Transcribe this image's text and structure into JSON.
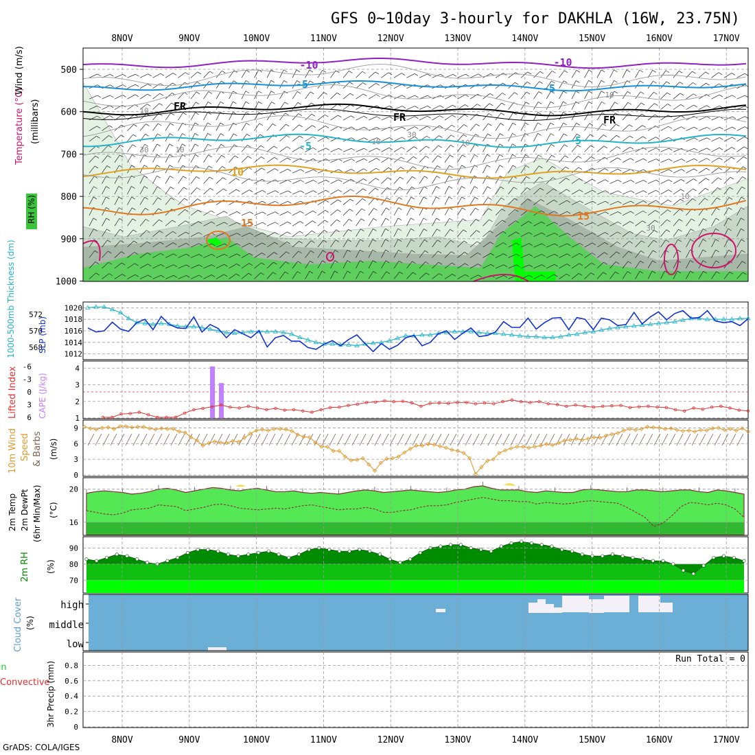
{
  "title": "GFS 0~10day 3-hourly for DAKHLA (16W, 23.75N)",
  "credit": "GrADS: COLA/IGES",
  "dates": [
    "8NOV",
    "9NOV",
    "10NOV",
    "11NOV",
    "12NOV",
    "13NOV",
    "14NOV",
    "15NOV",
    "16NOV",
    "17NOV"
  ],
  "colors": {
    "rh_light": "#e0f0e0",
    "rh_mid": "#c8d8c8",
    "rh_dark": "#a8b4a8",
    "rh_green": "#5ccf5c",
    "rh_bright": "#00ff00",
    "t_m10": "#9020c0",
    "t_m5": "#1890d8",
    "t_fr": "#000000",
    "t_5": "#20b4c8",
    "t_10": "#e0a020",
    "t_15": "#e07820",
    "t_20": "#d0106a",
    "slp": "#1030d0",
    "thick": "#20b4c8",
    "li": "#e03030",
    "cape": "#c080ff",
    "wind_speed": "#e09a30",
    "barbs": "#806050",
    "temp_fill": "#55e855",
    "dew_fill": "#30b830",
    "rh2m_dark": "#008c00",
    "rh2m_mid": "#10c010",
    "rh2m_bright": "#00ff00",
    "cloud_bg": "#6baed6",
    "cloud": "#f4f0f8"
  },
  "panels": {
    "upper": {
      "label_wind": "Wind (m/s)",
      "label_temp": "Temperature (°C)",
      "label_rh": "RH (%)",
      "label_ylabel": "(millibars)",
      "yticks": [
        500,
        600,
        700,
        800,
        900,
        1000
      ],
      "contour_labels": [
        "-10",
        "-10",
        "-5",
        "-5",
        "FR",
        "FR",
        "FR",
        "-5",
        "-5",
        "10",
        "15",
        "15"
      ],
      "rh_labels": [
        "30",
        "10",
        "10",
        "30",
        "10",
        "10",
        "30",
        "10",
        "10"
      ]
    },
    "slp": {
      "label_thick": "1000-500mb Thickness (dm)",
      "label_slp": "SLP (mb)",
      "left_ticks": [
        568,
        570,
        572
      ],
      "right_ticks": [
        1012,
        1014,
        1016,
        1018,
        1020
      ]
    },
    "li": {
      "label_li": "Lifted Index",
      "label_cape": "CAPE (J/kg)",
      "left_ticks": [
        "-6",
        "-3",
        "0",
        "3",
        "6"
      ],
      "right_ticks": [
        "1",
        "2",
        "3",
        "4"
      ]
    },
    "wind": {
      "label_wind": "10m Wind",
      "label_speed": "Speed",
      "label_barbs": "& Barbs",
      "label_units": "(m/s)",
      "ticks": [
        0,
        3,
        6,
        9
      ]
    },
    "temp": {
      "label_a": "2m Temp",
      "label_b": "2m DewPt",
      "label_c": "(6hr Min/Max)",
      "label_units": "(°C)",
      "ticks": [
        16,
        20
      ]
    },
    "rh2m": {
      "label": "2m RH",
      "label_units": "(%)",
      "ticks": [
        70,
        80,
        90
      ]
    },
    "cloud": {
      "label": "Cloud Cover",
      "label_units": "(%)",
      "levels": [
        "high",
        "middle",
        "low"
      ]
    },
    "precip": {
      "label_a": "Total / Rain",
      "label_b": "Convective",
      "label_c": "3hr Precip (mm)",
      "ticks": [
        "0",
        "0.2",
        "0.4",
        "0.6",
        "0.8"
      ],
      "run_total": "Run Total = 0"
    }
  },
  "chart_data": [
    {
      "type": "line",
      "title": "SLP (mb)",
      "x_start": "7NOV 12Z",
      "x_step_hours": 3,
      "values": [
        1016.5,
        1015.8,
        1016.0,
        1017.5,
        1016.3,
        1015.9,
        1017.4,
        1018.0,
        1016.2,
        1018.5,
        1017.1,
        1016.5,
        1016.4,
        1018.4,
        1015.8,
        1017.1,
        1016.4,
        1014.8,
        1016.2,
        1015.5,
        1014.8,
        1016.0,
        1013.2,
        1014.8,
        1015.2,
        1014.2,
        1014.2,
        1013.1,
        1012.8,
        1013.7,
        1014.3,
        1013.4,
        1014.5,
        1015.3,
        1013.8,
        1012.4,
        1013.8,
        1012.8,
        1013.5,
        1014.8,
        1015.2,
        1013.4,
        1014.0,
        1015.5,
        1016.0,
        1014.5,
        1015.6,
        1016.5,
        1015.0,
        1015.2,
        1015.8,
        1017.6,
        1016.6,
        1016.6,
        1018.2,
        1016.3,
        1017.4,
        1018.2,
        1018.3,
        1016.2,
        1018.3,
        1018.0,
        1016.2,
        1018.2,
        1017.9,
        1016.9,
        1017.1,
        1019.2,
        1017.2,
        1018.4,
        1019.3,
        1017.9,
        1019.0,
        1019.5,
        1018.2,
        1018.3,
        1019.5,
        1017.7,
        1017.4,
        1017.6,
        1016.9,
        1018.1
      ],
      "ylim": [
        1011,
        1021
      ]
    },
    {
      "type": "line",
      "title": "1000-500mb Thickness (dm)",
      "values": [
        572.8,
        572.9,
        572.9,
        572.6,
        572.2,
        571.5,
        571.0,
        570.9,
        570.8,
        570.9,
        570.8,
        570.6,
        570.5,
        570.5,
        570.4,
        570.2,
        570.0,
        569.8,
        569.7,
        569.8,
        569.9,
        569.9,
        569.9,
        569.9,
        569.8,
        569.6,
        569.2,
        568.9,
        568.6,
        568.4,
        568.4,
        568.3,
        568.3,
        568.2,
        568.4,
        568.5,
        568.6,
        568.8,
        569.1,
        569.4,
        569.4,
        569.5,
        569.5,
        569.7,
        569.8,
        569.9,
        569.9,
        569.9,
        569.8,
        569.7,
        569.7,
        569.6,
        569.5,
        569.4,
        569.3,
        569.3,
        569.2,
        569.2,
        569.3,
        569.5,
        569.6,
        569.8,
        569.9,
        570.1,
        570.3,
        570.4,
        570.5,
        570.6,
        570.7,
        570.8,
        570.9,
        571.0,
        571.1,
        571.3,
        571.5,
        571.5,
        571.4,
        571.4,
        571.4,
        571.4,
        571.5,
        571.5
      ],
      "ylim": [
        566.5,
        573.5
      ]
    },
    {
      "type": "line",
      "title": "Lifted Index",
      "values": [
        6.0,
        6.0,
        5.2,
        5.1,
        4.8,
        5.4,
        6.0,
        6.0,
        6.0,
        5.0,
        4.2,
        3.9,
        3.5,
        3.1,
        3.6,
        3.8,
        3.4,
        3.8,
        4.2,
        3.9,
        4.3,
        4.2,
        4.5,
        4.8,
        4.2,
        3.7,
        3.6,
        3.2,
        2.9,
        2.5,
        2.4,
        2.1,
        2.3,
        2.2,
        2.6,
        3.4,
        2.7,
        2.6,
        2.7,
        2.5,
        2.5,
        2.8,
        2.6,
        2.8,
        2.3,
        1.9,
        2.3,
        2.5,
        2.3,
        2.8,
        3.0,
        3.4,
        3.1,
        3.4,
        3.6,
        3.4,
        3.3,
        3.2,
        3.7,
        3.5,
        3.4,
        3.6,
        3.7,
        4.2,
        4.5,
        3.8,
        4.1,
        3.6,
        3.4,
        3.8,
        4.3,
        4.5
      ],
      "ylim": [
        6,
        -6
      ]
    },
    {
      "type": "bar",
      "title": "CAPE (J/kg)",
      "categories": [
        "9NOV 09Z",
        "9NOV 12Z"
      ],
      "values": [
        4.1,
        3.1
      ],
      "ylim": [
        1,
        4.3
      ]
    },
    {
      "type": "line",
      "title": "10m Wind Speed (m/s)",
      "values": [
        9.2,
        8.9,
        8.7,
        9.0,
        9.1,
        8.8,
        9.3,
        9.3,
        9.1,
        9.2,
        9.2,
        8.9,
        8.7,
        8.9,
        8.8,
        8.8,
        8.3,
        8.1,
        7.2,
        6.6,
        5.6,
        6.1,
        6.4,
        6.2,
        6.1,
        6.5,
        6.3,
        7.1,
        7.9,
        8.5,
        8.7,
        8.5,
        8.8,
        8.8,
        8.7,
        8.4,
        7.7,
        7.3,
        7.2,
        6.2,
        5.4,
        5.4,
        4.6,
        4.6,
        3.5,
        2.8,
        2.9,
        3.2,
        2.0,
        0.8,
        2.3,
        3.1,
        3.2,
        3.5,
        4.3,
        5.0,
        5.6,
        5.6,
        5.9,
        5.8,
        5.5,
        5.2,
        4.8,
        4.6,
        4.2,
        3.2,
        0.2,
        1.5,
        2.7,
        3.0,
        4.2,
        4.7,
        5.1,
        5.4,
        5.4,
        5.2,
        5.4,
        5.6,
        5.9,
        5.7,
        6.1,
        6.6,
        6.7,
        6.9,
        6.7,
        6.9,
        7.2,
        7.1,
        7.5,
        7.8,
        8.0,
        8.5,
        8.8,
        8.6,
        8.8,
        9.2,
        9.1,
        9.0,
        8.8,
        8.9,
        8.6,
        8.4,
        8.5,
        8.3,
        8.6,
        8.5,
        8.9,
        9.0,
        8.6,
        8.8,
        8.5,
        8.9,
        8.3
      ],
      "ylim": [
        0,
        10.5
      ]
    },
    {
      "type": "area",
      "title": "2m Temp (°C)",
      "values": [
        19.5,
        19.7,
        19.8,
        19.7,
        19.6,
        19.4,
        19.5,
        19.7,
        20.0,
        20.1,
        19.9,
        19.6,
        19.8,
        20.0,
        20.2,
        20.1,
        19.9,
        19.8,
        20.0,
        20.1,
        19.9,
        19.7,
        19.7,
        19.8,
        19.6,
        19.5,
        19.6,
        19.5,
        19.4,
        19.6,
        19.8,
        19.9,
        19.8,
        19.6,
        19.7,
        19.8,
        19.9,
        19.8,
        19.7,
        19.6,
        19.7,
        19.9,
        20.0,
        20.3,
        20.4,
        20.1,
        19.9,
        19.9,
        19.9,
        19.7,
        19.6,
        19.8,
        19.7,
        19.6,
        19.6,
        19.9,
        20.0,
        19.9,
        19.8,
        19.7,
        19.7,
        19.9,
        19.9,
        19.8,
        19.7,
        19.8,
        19.9,
        19.9,
        19.7,
        19.6,
        19.9,
        19.8,
        19.6,
        19.4
      ],
      "ylim": [
        14.5,
        21.3
      ]
    },
    {
      "type": "line",
      "title": "2m DewPt (°C)",
      "values": [
        17.4,
        17.2,
        17.0,
        16.9,
        17.1,
        17.5,
        17.6,
        17.7,
        18.1,
        18.0,
        17.9,
        17.4,
        17.6,
        17.8,
        18.1,
        18.2,
        18.0,
        17.7,
        17.6,
        17.5,
        17.6,
        17.7,
        17.6,
        17.8,
        18.0,
        18.1,
        17.9,
        17.7,
        17.5,
        17.6,
        17.6,
        17.8,
        17.6,
        17.2,
        17.2,
        17.4,
        17.5,
        17.8,
        18.0,
        18.0,
        18.1,
        18.4,
        18.6,
        18.8,
        19.0,
        18.8,
        18.6,
        18.6,
        18.5,
        18.5,
        18.2,
        18.4,
        18.3,
        18.2,
        18.3,
        18.5,
        18.6,
        18.5,
        18.4,
        18.3,
        17.8,
        17.2,
        16.6,
        15.5,
        15.9,
        16.8,
        17.9,
        18.4,
        18.3,
        18.1,
        18.3,
        18.1,
        17.6,
        16.6
      ],
      "ylim": [
        14.5,
        21.3
      ]
    },
    {
      "type": "area",
      "title": "2m RH (%)",
      "values": [
        83,
        82,
        84,
        86,
        85,
        83,
        81,
        80,
        82,
        84,
        87,
        89,
        89,
        88,
        86,
        85,
        86,
        87,
        88,
        86,
        84,
        86,
        89,
        90,
        89,
        88,
        88,
        89,
        88,
        86,
        83,
        81,
        83,
        87,
        90,
        91,
        92,
        92,
        90,
        89,
        88,
        91,
        93,
        94,
        93,
        92,
        91,
        89,
        88,
        86,
        85,
        85,
        86,
        85,
        84,
        83,
        82,
        82,
        80,
        76,
        74,
        79,
        84,
        85,
        84,
        82
      ],
      "ylim": [
        62,
        97
      ]
    },
    {
      "type": "heatmap",
      "title": "Cloud Cover (%)",
      "categories": [
        "high",
        "middle",
        "low"
      ],
      "values": [
        {
          "level": "high",
          "from": "12NOV 21Z",
          "to": "13NOV 00Z",
          "cover": 30
        },
        {
          "level": "low",
          "from": "9NOV 09Z",
          "to": "9NOV 15Z",
          "cover": 20
        },
        {
          "level": "high",
          "from": "14NOV 00Z",
          "to": "16NOV 06Z",
          "cover": 60
        }
      ]
    },
    {
      "type": "bar",
      "title": "3hr Precip (mm)",
      "values": [],
      "ylim": [
        0,
        1
      ]
    }
  ]
}
